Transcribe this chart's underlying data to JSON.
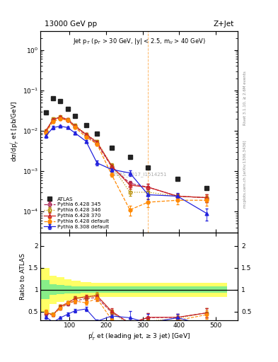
{
  "title_top": "13000 GeV pp",
  "title_right": "Z+Jet",
  "annotation": "Jet p$_T$ (p$_T$ > 30 GeV, |y| < 2.5, m$_{ll}$ > 40 GeV)",
  "atlas_label": "ATLAS_2017_I1514251",
  "rivet_label": "Rivet 3.1.10, ≥ 2.6M events",
  "arxiv_label": "mcplots.cern.ch [arXiv:1306.3436]",
  "ylabel_main": "dσ/dp$^j_T$ et [pb/GeV]",
  "ylabel_ratio": "Ratio to ATLAS",
  "xlabel": "p$^j_T$ et (leading jet, ≥ 3 jet) [GeV]",
  "ylim_main": [
    3e-05,
    3.0
  ],
  "ylim_ratio": [
    0.3,
    2.3
  ],
  "xlim": [
    20,
    560
  ],
  "atlas_x": [
    35,
    55,
    75,
    95,
    115,
    145,
    175,
    215,
    265,
    315,
    395,
    475
  ],
  "atlas_y": [
    0.028,
    0.065,
    0.055,
    0.035,
    0.023,
    0.014,
    0.0085,
    0.0038,
    0.0022,
    0.00125,
    0.00065,
    0.00038
  ],
  "p6_345_x": [
    35,
    55,
    75,
    95,
    115,
    145,
    175,
    215,
    265,
    315,
    395,
    475
  ],
  "p6_345_y": [
    0.0095,
    0.019,
    0.021,
    0.018,
    0.013,
    0.0078,
    0.0048,
    0.0013,
    0.0005,
    0.0004,
    0.00024,
    0.00022
  ],
  "p6_345_yerr": [
    0.0008,
    0.0015,
    0.0015,
    0.0012,
    0.001,
    0.0006,
    0.0004,
    0.00015,
    8e-05,
    8e-05,
    4e-05,
    5e-05
  ],
  "p6_346_x": [
    35,
    55,
    75,
    95,
    115,
    145,
    175,
    215,
    265,
    315,
    395,
    475
  ],
  "p6_346_y": [
    0.01,
    0.02,
    0.022,
    0.019,
    0.014,
    0.0082,
    0.0055,
    0.0014,
    0.0003,
    0.0003,
    0.00024,
    0.00022
  ],
  "p6_346_yerr": [
    0.0009,
    0.0016,
    0.0016,
    0.0013,
    0.0011,
    0.0007,
    0.0005,
    0.00016,
    6e-05,
    6e-05,
    4e-05,
    5e-05
  ],
  "p6_370_x": [
    35,
    55,
    75,
    95,
    115,
    145,
    175,
    215,
    265,
    315,
    395,
    475
  ],
  "p6_370_y": [
    0.01,
    0.019,
    0.022,
    0.019,
    0.013,
    0.0082,
    0.0052,
    0.00135,
    0.00045,
    0.0004,
    0.00024,
    0.00022
  ],
  "p6_370_yerr": [
    0.0009,
    0.0015,
    0.0016,
    0.0013,
    0.001,
    0.0006,
    0.0004,
    0.00015,
    8e-05,
    8e-05,
    4e-05,
    5e-05
  ],
  "p6_def_x": [
    35,
    55,
    75,
    95,
    115,
    145,
    175,
    215,
    265,
    315,
    395,
    475
  ],
  "p6_def_y": [
    0.009,
    0.017,
    0.02,
    0.018,
    0.012,
    0.007,
    0.0047,
    0.00082,
    0.00011,
    0.00017,
    0.00019,
    0.00019
  ],
  "p6_def_yerr": [
    0.0008,
    0.0013,
    0.0014,
    0.0012,
    0.0009,
    0.0006,
    0.0004,
    0.0001,
    3e-05,
    4e-05,
    4e-05,
    5e-05
  ],
  "p8_def_x": [
    35,
    55,
    75,
    95,
    115,
    145,
    175,
    215,
    265,
    315,
    395,
    475
  ],
  "p8_def_y": [
    0.0075,
    0.012,
    0.013,
    0.012,
    0.0088,
    0.0055,
    0.0016,
    0.0011,
    0.0009,
    0.00026,
    0.00024,
    9e-05
  ],
  "p8_def_yerr": [
    0.0007,
    0.001,
    0.001,
    0.0009,
    0.0007,
    0.0005,
    0.0002,
    0.00013,
    0.00015,
    6e-05,
    5e-05,
    3e-05
  ],
  "band_x_edges": [
    20,
    45,
    65,
    85,
    105,
    130,
    160,
    195,
    240,
    290,
    350,
    440,
    530
  ],
  "green_band_lo": [
    0.78,
    0.88,
    0.9,
    0.91,
    0.92,
    0.93,
    0.93,
    0.93,
    0.93,
    0.93,
    0.93,
    0.93
  ],
  "green_band_hi": [
    1.22,
    1.12,
    1.1,
    1.09,
    1.08,
    1.07,
    1.07,
    1.07,
    1.07,
    1.07,
    1.07,
    1.07
  ],
  "yellow_band_lo": [
    0.5,
    0.68,
    0.72,
    0.76,
    0.79,
    0.82,
    0.84,
    0.84,
    0.84,
    0.84,
    0.84,
    0.84
  ],
  "yellow_band_hi": [
    1.5,
    1.32,
    1.28,
    1.24,
    1.21,
    1.18,
    1.16,
    1.16,
    1.16,
    1.16,
    1.16,
    1.16
  ],
  "ratio_x": [
    35,
    55,
    75,
    95,
    115,
    145,
    175,
    215,
    265,
    315,
    395,
    475
  ],
  "ratio_p6_345_y": [
    0.44,
    0.43,
    0.58,
    0.68,
    0.74,
    0.8,
    0.82,
    0.48,
    0.24,
    0.36,
    0.37,
    0.47
  ],
  "ratio_p6_346_y": [
    0.48,
    0.44,
    0.62,
    0.7,
    0.8,
    0.82,
    0.88,
    0.49,
    0.19,
    0.28,
    0.35,
    0.47
  ],
  "ratio_p6_370_y": [
    0.48,
    0.43,
    0.62,
    0.7,
    0.8,
    0.84,
    0.86,
    0.51,
    0.23,
    0.37,
    0.37,
    0.47
  ],
  "ratio_p6_def_y": [
    0.5,
    0.43,
    0.58,
    0.7,
    0.74,
    0.7,
    0.8,
    0.32,
    0.07,
    0.16,
    0.3,
    0.43
  ],
  "ratio_p8_def_y": [
    0.38,
    0.26,
    0.36,
    0.44,
    0.52,
    0.56,
    0.28,
    0.4,
    0.36,
    0.24,
    0.36,
    0.19
  ],
  "ratio_p6_345_yerr": [
    0.04,
    0.03,
    0.04,
    0.04,
    0.05,
    0.05,
    0.06,
    0.06,
    0.06,
    0.1,
    0.08,
    0.1
  ],
  "ratio_p6_346_yerr": [
    0.04,
    0.03,
    0.04,
    0.04,
    0.05,
    0.05,
    0.07,
    0.06,
    0.04,
    0.07,
    0.07,
    0.1
  ],
  "ratio_p6_370_yerr": [
    0.04,
    0.03,
    0.04,
    0.04,
    0.05,
    0.05,
    0.06,
    0.06,
    0.06,
    0.1,
    0.08,
    0.1
  ],
  "ratio_p6_def_yerr": [
    0.04,
    0.03,
    0.04,
    0.04,
    0.05,
    0.05,
    0.06,
    0.05,
    0.03,
    0.06,
    0.07,
    0.1
  ],
  "ratio_p8_def_yerr": [
    0.04,
    0.03,
    0.03,
    0.04,
    0.04,
    0.05,
    0.04,
    0.05,
    0.15,
    0.2,
    0.08,
    0.05
  ],
  "vline_x": 315,
  "color_p6_345": "#aa2255",
  "color_p6_346": "#b8900a",
  "color_p6_370": "#cc2222",
  "color_p6_def": "#ff8800",
  "color_p8_def": "#2222dd",
  "color_atlas": "#222222"
}
